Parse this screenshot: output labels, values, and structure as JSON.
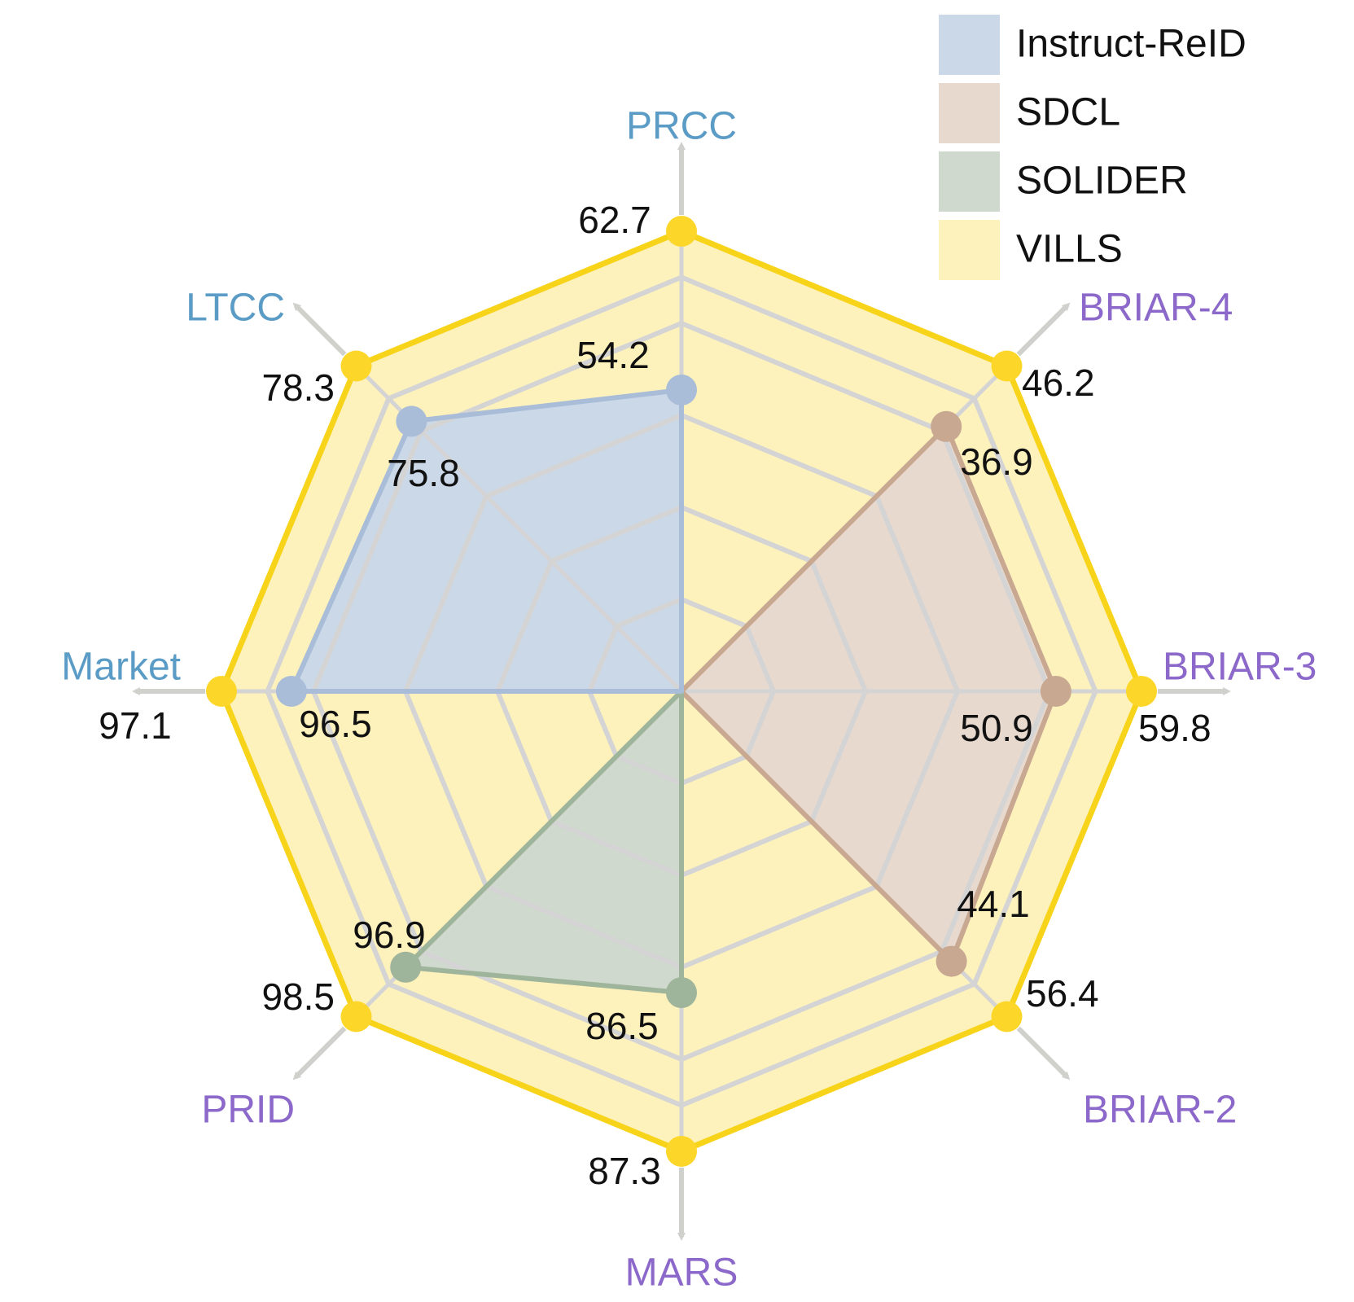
{
  "chart_data": {
    "type": "radar",
    "axes": [
      {
        "name": "PRCC",
        "color": "#5b9cc6"
      },
      {
        "name": "BRIAR-4",
        "color": "#8b68c9"
      },
      {
        "name": "BRIAR-3",
        "color": "#8b68c9"
      },
      {
        "name": "BRIAR-2",
        "color": "#8b68c9"
      },
      {
        "name": "MARS",
        "color": "#8b68c9"
      },
      {
        "name": "PRID",
        "color": "#8b68c9"
      },
      {
        "name": "Market",
        "color": "#5b9cc6"
      },
      {
        "name": "LTCC",
        "color": "#5b9cc6"
      }
    ],
    "series": [
      {
        "name": "Instruct-ReID",
        "fill": "#cbd8e8",
        "line": "#a9bdd9",
        "marker": "#a9bdd9",
        "relative": [
          0.655,
          0,
          0,
          0,
          0,
          0,
          0.848,
          0.83
        ],
        "markers": [
          0,
          6,
          7
        ],
        "labels": [
          {
            "axis": 0,
            "text": "54.2"
          },
          {
            "axis": 6,
            "text": "96.5"
          },
          {
            "axis": 7,
            "text": "75.8"
          }
        ]
      },
      {
        "name": "SDCL",
        "fill": "#e8d9cf",
        "line": "#c8a891",
        "marker": "#c8a891",
        "relative": [
          0,
          0.814,
          0.814,
          0.83,
          0,
          0,
          0,
          0
        ],
        "markers": [
          1,
          2,
          3
        ],
        "labels": [
          {
            "axis": 1,
            "text": "36.9"
          },
          {
            "axis": 2,
            "text": "50.9"
          },
          {
            "axis": 3,
            "text": "44.1"
          }
        ]
      },
      {
        "name": "SOLIDER",
        "fill": "#cfd9cd",
        "line": "#9fb59b",
        "marker": "#9fb59b",
        "relative": [
          0,
          0,
          0,
          0,
          0.655,
          0.848,
          0,
          0
        ],
        "markers": [
          4,
          5
        ],
        "labels": [
          {
            "axis": 4,
            "text": "86.5"
          },
          {
            "axis": 5,
            "text": "96.9"
          }
        ]
      },
      {
        "name": "VILLS",
        "fill": "#fdf1bc",
        "line": "#f7d319",
        "marker": "#fcd72a",
        "relative": [
          1,
          1,
          1,
          1,
          1,
          1,
          1,
          1
        ],
        "markers": [
          0,
          1,
          2,
          3,
          4,
          5,
          6,
          7
        ],
        "labels": [
          {
            "axis": 0,
            "text": "62.7"
          },
          {
            "axis": 1,
            "text": "46.2"
          },
          {
            "axis": 2,
            "text": "59.8"
          },
          {
            "axis": 3,
            "text": "56.4"
          },
          {
            "axis": 4,
            "text": "87.3"
          },
          {
            "axis": 5,
            "text": "98.5"
          },
          {
            "axis": 6,
            "text": "97.1"
          },
          {
            "axis": 7,
            "text": "78.3"
          }
        ]
      }
    ],
    "grid_levels": [
      0.2,
      0.4,
      0.6,
      0.8,
      0.9
    ],
    "grid_color": "#d4d4d4",
    "legend": {
      "position": "top-right",
      "entries": [
        "Instruct-ReID",
        "SDCL",
        "SOLIDER",
        "VILLS"
      ]
    }
  }
}
